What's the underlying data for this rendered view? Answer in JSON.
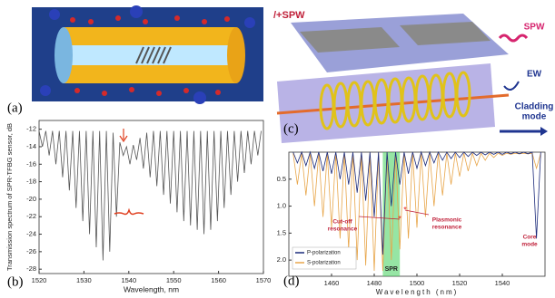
{
  "chart_data": [
    {
      "type": "line",
      "ylabel": "Transmission spectrum of SPR-TFBG sensor, dB",
      "xlabel": "Wavelength, nm",
      "xlim": [
        1520,
        1570
      ],
      "xticks": [
        1520,
        1530,
        1540,
        1550,
        1560,
        1570
      ],
      "ylim": [
        -28.5,
        -11
      ],
      "yticks": [
        -12,
        -14,
        -16,
        -18,
        -20,
        -22,
        -24,
        -26,
        -28
      ],
      "x": [
        1520,
        1520.75,
        1521.5,
        1522.25,
        1523,
        1523.75,
        1524.5,
        1525.25,
        1526,
        1526.75,
        1527.5,
        1528.25,
        1529,
        1529.75,
        1530.5,
        1531.25,
        1532,
        1532.75,
        1533.5,
        1534.25,
        1535,
        1535.75,
        1536.5,
        1537.25,
        1538,
        1538.75,
        1539.5,
        1540.25,
        1541,
        1541.75,
        1542.5,
        1543.25,
        1544,
        1544.75,
        1545.5,
        1546.25,
        1547,
        1547.75,
        1548.5,
        1549.25,
        1550,
        1550.75,
        1551.5,
        1552.25,
        1553,
        1553.75,
        1554.5,
        1555.25,
        1556,
        1556.75,
        1557.5,
        1558.25,
        1559,
        1559.75,
        1560.5,
        1561.25,
        1562,
        1562.75,
        1563.5,
        1564.25,
        1565,
        1565.75,
        1566.5,
        1567.25,
        1568,
        1568.75,
        1569.5
      ],
      "series": [
        {
          "color": "#555555",
          "values": [
            -12.2,
            -14,
            -12.2,
            -15,
            -12.2,
            -16,
            -12.2,
            -17.5,
            -12.2,
            -19,
            -12.2,
            -21,
            -12.2,
            -22.5,
            -12.2,
            -24,
            -12.2,
            -25.5,
            -12.2,
            -27,
            -12.2,
            -26,
            -12.4,
            -22,
            -13.5,
            -15,
            -14,
            -16,
            -13.8,
            -15.5,
            -13,
            -16.5,
            -12.4,
            -17.5,
            -12.2,
            -18.5,
            -12.2,
            -19.5,
            -12.2,
            -20.5,
            -12.2,
            -21.5,
            -12.2,
            -22.5,
            -12.2,
            -23,
            -12.2,
            -23.5,
            -12.2,
            -24,
            -12.2,
            -23.5,
            -12.2,
            -22.5,
            -12.2,
            -21,
            -12.2,
            -19.5,
            -12.2,
            -18,
            -12.2,
            -17,
            -12.2,
            -16,
            -12.2,
            -15,
            -12.2
          ]
        }
      ]
    },
    {
      "type": "line",
      "xlabel": "Wavelength (nm)",
      "xlim": [
        1440,
        1560
      ],
      "xticks": [
        1460,
        1480,
        1500,
        1520,
        1540
      ],
      "ylim": [
        2.3,
        0
      ],
      "yticks": [
        0.5,
        {
          "value": 1,
          "label": "1.0"
        },
        1.5,
        {
          "value": 2,
          "label": "2.0"
        }
      ],
      "x": [
        1442,
        1444,
        1446,
        1448,
        1450,
        1452,
        1454,
        1456,
        1458,
        1460,
        1462,
        1464,
        1466,
        1468,
        1470,
        1472,
        1474,
        1476,
        1478,
        1480,
        1482,
        1484,
        1486,
        1488,
        1490,
        1492,
        1494,
        1496,
        1498,
        1500,
        1502,
        1504,
        1506,
        1508,
        1510,
        1512,
        1514,
        1516,
        1518,
        1520,
        1522,
        1524,
        1526,
        1528,
        1530,
        1532,
        1534,
        1536,
        1538,
        1540,
        1542,
        1544,
        1546,
        1548,
        1550,
        1552,
        1554,
        1556,
        1558
      ],
      "series": [
        {
          "name": "P-polarization",
          "color": "#1b2a7a",
          "values": [
            0,
            0.2,
            0,
            0.25,
            0,
            0.3,
            0,
            0.35,
            0,
            0.4,
            0,
            0.5,
            0,
            0.6,
            0,
            0.75,
            0,
            0.9,
            0,
            1.2,
            0,
            1.9,
            0,
            1.0,
            0,
            0.6,
            0,
            0.4,
            0,
            0.3,
            0,
            0.25,
            0,
            0.2,
            0,
            0.15,
            0,
            0.12,
            0,
            0.1,
            0,
            0.08,
            0,
            0.06,
            0,
            0.05,
            0,
            0.04,
            0,
            0.04,
            0,
            0.03,
            0,
            0.03,
            0,
            0.03,
            0,
            1.6,
            0
          ]
        },
        {
          "name": "S-polarization",
          "color": "#e8a64a",
          "values": [
            0.02,
            0.6,
            0.02,
            0.8,
            0.02,
            1.0,
            0.02,
            1.2,
            0.02,
            1.4,
            0.02,
            1.6,
            0.02,
            1.8,
            0.02,
            2.0,
            0.02,
            2.1,
            0.02,
            2.2,
            0.02,
            2.2,
            0.02,
            2.0,
            0.02,
            1.8,
            0.02,
            1.6,
            0.02,
            1.4,
            0.02,
            1.2,
            0.02,
            1.0,
            0.02,
            0.8,
            0.02,
            0.6,
            0.02,
            0.45,
            0.02,
            0.35,
            0.02,
            0.25,
            0.02,
            0.15,
            0.02,
            0.1,
            0.02,
            0.06,
            0.02,
            0.04,
            0.02,
            0.03,
            0.02,
            0.03,
            0.02,
            0.3,
            0.02
          ]
        }
      ],
      "spr_band": [
        1484,
        1492
      ],
      "spr_label": "SPR",
      "annotations": [
        {
          "lines": [
            "Cut-off",
            "resonance"
          ]
        },
        {
          "lines": [
            "Plasmonic",
            "resonance"
          ]
        },
        {
          "lines": [
            "Core",
            "mode"
          ]
        }
      ]
    }
  ],
  "figure": {
    "panel_labels": [
      "(a)",
      "(b)",
      "(c)",
      "(d)"
    ],
    "illustration_c": {
      "title": "/+SPW",
      "legend": [
        {
          "lines": [
            "SPW"
          ]
        },
        {
          "lines": [
            "EW"
          ]
        },
        {
          "lines": [
            "Cladding",
            "mode"
          ]
        }
      ]
    }
  }
}
